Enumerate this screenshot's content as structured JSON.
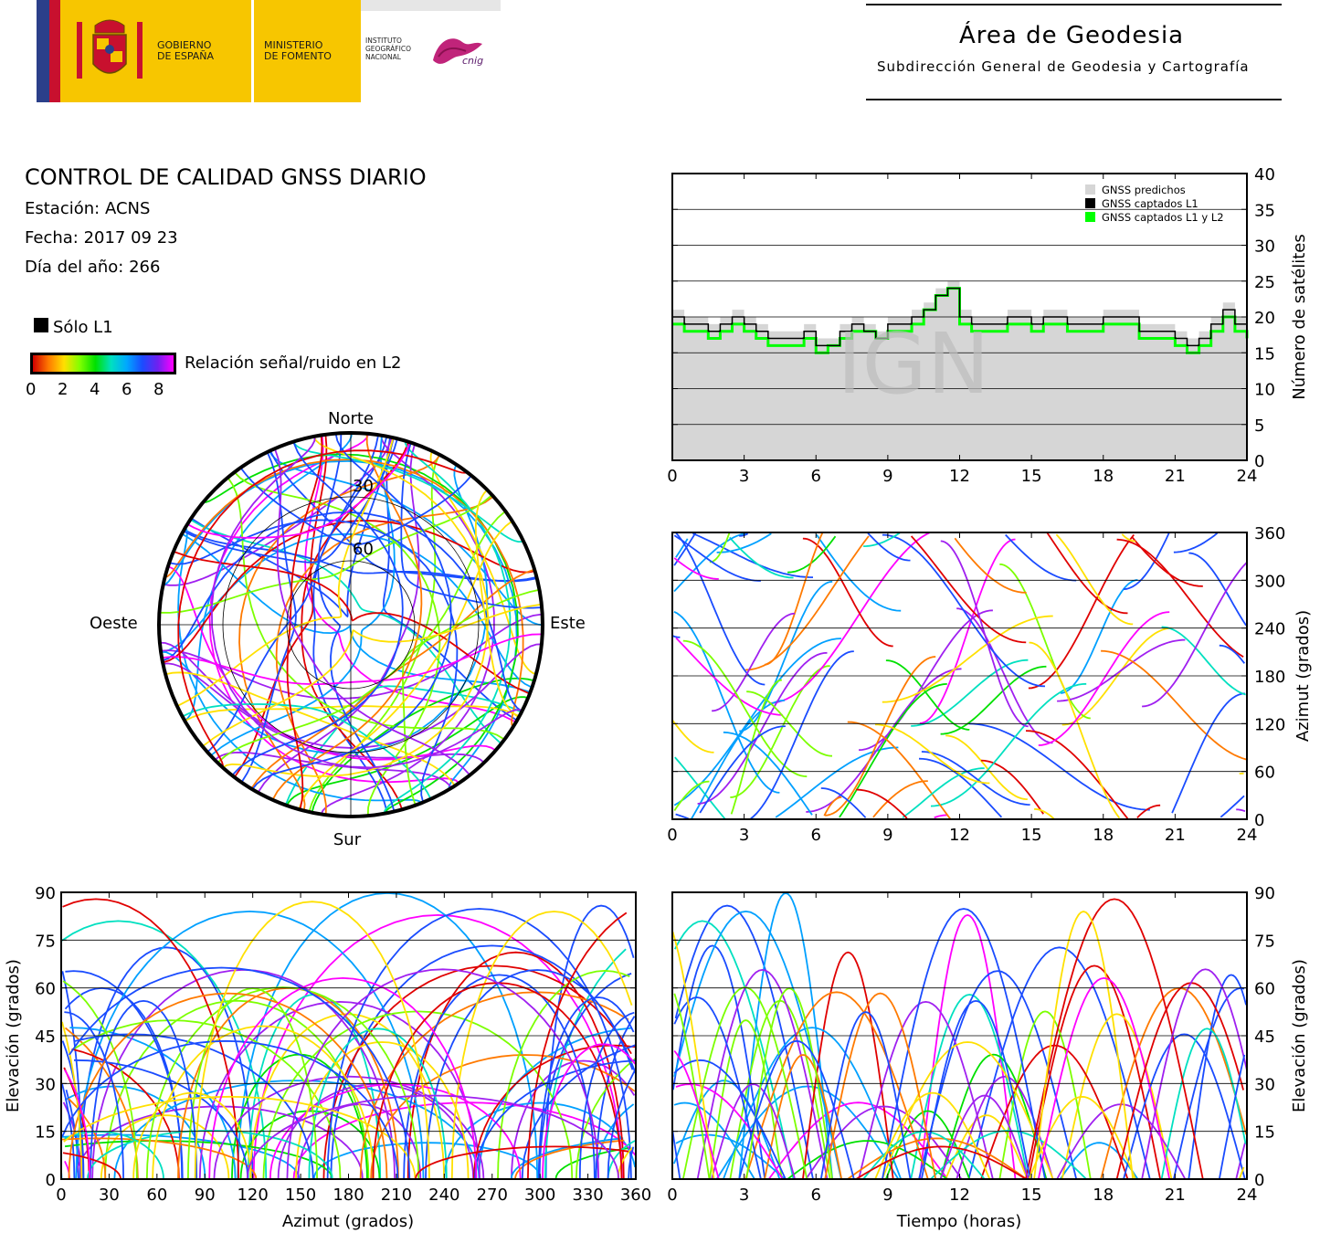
{
  "header": {
    "gobierno": "GOBIERNO\nDE ESPAÑA",
    "gobierno_l1": "GOBIERNO",
    "gobierno_l2": "DE ESPAÑA",
    "ministerio_l1": "MINISTERIO",
    "ministerio_l2": "DE FOMENTO",
    "instituto_l1": "INSTITUTO",
    "instituto_l2": "GEOGRÁFICO",
    "instituto_l3": "NACIONAL",
    "cnig": "cnig",
    "area_title": "Área de Geodesia",
    "area_subtitle": "Subdirección General de Geodesia y Cartografía"
  },
  "info": {
    "title": "CONTROL DE CALIDAD GNSS DIARIO",
    "station": "Estación: ACNS",
    "date": "Fecha: 2017 09 23",
    "doy": "Día del año: 266"
  },
  "legend": {
    "solo_l1": "Sólo L1",
    "snr_label": "Relación señal/ruido en L2",
    "snr_ticks": [
      "0",
      "2",
      "4",
      "6",
      "8"
    ]
  },
  "watermark": "IGN",
  "colors": {
    "predicted": "#d6d6d6",
    "l1": "#000000",
    "l1l2": "#00ff00",
    "track_palette": [
      "#e00000",
      "#ff7a00",
      "#ffe000",
      "#7cff00",
      "#00e000",
      "#00e0c0",
      "#00a0ff",
      "#1a4cff",
      "#a020f0",
      "#ff00ff"
    ]
  },
  "chart_data": [
    {
      "id": "sat_count",
      "type": "area",
      "xlabel": "",
      "ylabel": "Número de satélites",
      "xlim": [
        0,
        24
      ],
      "ylim": [
        0,
        40
      ],
      "xticks": [
        "0",
        "3",
        "6",
        "9",
        "12",
        "15",
        "18",
        "21",
        "24"
      ],
      "yticks": [
        "0",
        "5",
        "10",
        "15",
        "20",
        "25",
        "30",
        "35",
        "40"
      ],
      "grid": true,
      "legend_position": "top-right",
      "legend": [
        "GNSS predichos",
        "GNSS captados L1",
        "GNSS captados L1 y L2"
      ],
      "x": [
        0,
        0.5,
        1,
        1.5,
        2,
        2.5,
        3,
        3.5,
        4,
        4.5,
        5,
        5.5,
        6,
        6.5,
        7,
        7.5,
        8,
        8.5,
        9,
        9.5,
        10,
        10.5,
        11,
        11.5,
        12,
        12.5,
        13,
        13.5,
        14,
        14.5,
        15,
        15.5,
        16,
        16.5,
        17,
        17.5,
        18,
        18.5,
        19,
        19.5,
        20,
        20.5,
        21,
        21.5,
        22,
        22.5,
        23,
        23.5,
        24
      ],
      "series": [
        {
          "name": "GNSS predichos",
          "values": [
            21,
            20,
            20,
            19,
            20,
            21,
            20,
            19,
            18,
            18,
            18,
            19,
            17,
            17,
            19,
            20,
            19,
            18,
            20,
            20,
            21,
            22,
            24,
            25,
            21,
            20,
            20,
            20,
            21,
            21,
            20,
            21,
            21,
            20,
            20,
            20,
            21,
            21,
            21,
            19,
            19,
            19,
            18,
            17,
            18,
            20,
            22,
            20,
            19
          ]
        },
        {
          "name": "GNSS captados L1",
          "values": [
            20,
            19,
            19,
            18,
            19,
            20,
            19,
            18,
            17,
            17,
            17,
            18,
            16,
            16,
            18,
            19,
            18,
            17,
            19,
            19,
            20,
            21,
            23,
            24,
            20,
            19,
            19,
            19,
            20,
            20,
            19,
            20,
            20,
            19,
            19,
            19,
            20,
            20,
            20,
            18,
            18,
            18,
            17,
            16,
            17,
            19,
            21,
            19,
            18
          ]
        },
        {
          "name": "GNSS captados L1 y L2",
          "values": [
            19,
            18,
            18,
            17,
            18,
            19,
            18,
            17,
            16,
            16,
            16,
            17,
            15,
            16,
            17,
            18,
            18,
            17,
            18,
            18,
            19,
            21,
            23,
            24,
            19,
            18,
            18,
            18,
            19,
            19,
            18,
            19,
            19,
            18,
            18,
            18,
            19,
            19,
            19,
            17,
            17,
            17,
            16,
            15,
            16,
            18,
            20,
            18,
            17
          ]
        }
      ]
    },
    {
      "id": "azimuth_time",
      "type": "scatter",
      "xlabel": "",
      "ylabel": "Azimut (grados)",
      "xlim": [
        0,
        24
      ],
      "ylim": [
        0,
        360
      ],
      "xticks": [
        "0",
        "3",
        "6",
        "9",
        "12",
        "15",
        "18",
        "21",
        "24"
      ],
      "yticks": [
        "0",
        "60",
        "120",
        "180",
        "240",
        "300",
        "360"
      ],
      "grid": true
    },
    {
      "id": "skyplot",
      "type": "scatter",
      "projection": "polar",
      "labels": {
        "north": "Norte",
        "south": "Sur",
        "east": "Este",
        "west": "Oeste"
      },
      "rings": [
        "30",
        "60"
      ],
      "grid": true
    },
    {
      "id": "elev_azimuth",
      "type": "scatter",
      "xlabel": "Azimut (grados)",
      "ylabel": "Elevación (grados)",
      "xlim": [
        0,
        360
      ],
      "ylim": [
        0,
        90
      ],
      "xticks": [
        "0",
        "30",
        "60",
        "90",
        "120",
        "150",
        "180",
        "210",
        "240",
        "270",
        "300",
        "330",
        "360"
      ],
      "yticks": [
        "0",
        "15",
        "30",
        "45",
        "60",
        "75",
        "90"
      ],
      "grid": true
    },
    {
      "id": "elev_time",
      "type": "line",
      "xlabel": "Tiempo (horas)",
      "ylabel": "Elevación (grados)",
      "xlim": [
        0,
        24
      ],
      "ylim": [
        0,
        90
      ],
      "xticks": [
        "0",
        "3",
        "6",
        "9",
        "12",
        "15",
        "18",
        "21",
        "24"
      ],
      "yticks": [
        "0",
        "15",
        "30",
        "45",
        "60",
        "75",
        "90"
      ],
      "grid": true
    }
  ]
}
